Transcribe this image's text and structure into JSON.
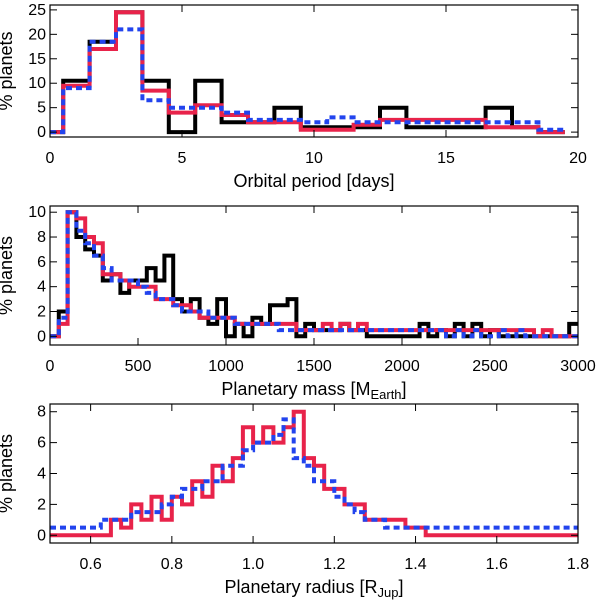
{
  "colors": {
    "black_series": "#000000",
    "red_series": "#e8234a",
    "blue_series": "#2244ee"
  },
  "chart_data": [
    {
      "type": "histogram-step",
      "xlabel": "Orbital period [days]",
      "ylabel": "% planets",
      "xlim": [
        0,
        20
      ],
      "ylim": [
        -1,
        26
      ],
      "xticks": [
        0,
        5,
        10,
        15,
        20
      ],
      "yticks": [
        0,
        5,
        10,
        15,
        20,
        25
      ],
      "series": [
        {
          "color_key": "black_series",
          "dashed": false,
          "x": [
            0,
            0.5,
            1.5,
            2.5,
            3.5,
            4.5,
            5.5,
            6.5,
            7.5,
            8.5,
            9.5,
            10.5,
            11.5,
            12.5,
            13.5,
            14.5,
            15.5,
            16.5,
            17.5,
            18.5,
            19.5
          ],
          "y": [
            0,
            10.5,
            18.5,
            24.5,
            10.5,
            0,
            10.5,
            2,
            2,
            5,
            1,
            1,
            1,
            5,
            1,
            1,
            1,
            5,
            1,
            0
          ]
        },
        {
          "color_key": "red_series",
          "dashed": false,
          "x": [
            0,
            0.5,
            1.5,
            2.5,
            3.5,
            4.5,
            5.5,
            6.5,
            7.5,
            8.5,
            9.5,
            10.5,
            11.5,
            12.5,
            13.5,
            14.5,
            15.5,
            16.5,
            17.5,
            18.5,
            19.5
          ],
          "y": [
            0,
            9.5,
            17,
            24.5,
            8.5,
            4,
            5.5,
            3.5,
            2,
            2,
            0.5,
            0.5,
            1.5,
            2.5,
            2.5,
            2.5,
            2.5,
            1,
            1,
            0
          ]
        },
        {
          "color_key": "blue_series",
          "dashed": true,
          "x": [
            0,
            0.5,
            1.5,
            2.5,
            3.5,
            4.5,
            5.5,
            6.5,
            7.5,
            8.5,
            9.5,
            10.5,
            11.5,
            12.5,
            13.5,
            14.5,
            15.5,
            16.5,
            17.5,
            18.5,
            19.5
          ],
          "y": [
            0,
            9,
            18.5,
            21,
            6.5,
            5,
            5,
            4,
            2.5,
            2.5,
            2,
            3,
            2,
            2,
            2,
            2,
            2,
            2,
            2,
            0.5
          ]
        }
      ]
    },
    {
      "type": "histogram-step",
      "xlabel": "Planetary mass [M",
      "xlabel_sub": "Earth",
      "xlabel_end": "]",
      "ylabel": "% planets",
      "xlim": [
        0,
        3000
      ],
      "ylim": [
        -0.7,
        10.5
      ],
      "xticks": [
        0,
        500,
        1000,
        1500,
        2000,
        2500,
        3000
      ],
      "yticks": [
        0,
        2,
        4,
        6,
        8,
        10
      ],
      "series": [
        {
          "color_key": "black_series",
          "dashed": false,
          "x": [
            0,
            50,
            100,
            150,
            200,
            250,
            300,
            350,
            400,
            450,
            500,
            550,
            600,
            650,
            700,
            750,
            800,
            850,
            900,
            950,
            1000,
            1050,
            1100,
            1150,
            1200,
            1250,
            1300,
            1350,
            1400,
            1450,
            1500,
            1550,
            1600,
            1650,
            1700,
            1750,
            1800,
            1850,
            1900,
            1950,
            2000,
            2050,
            2100,
            2150,
            2200,
            2250,
            2300,
            2350,
            2400,
            2450,
            2500,
            2550,
            2600,
            2650,
            2700,
            2750,
            2800,
            2850,
            2900,
            2950,
            3000
          ],
          "y": [
            0,
            2,
            10,
            8,
            7,
            6.5,
            4.5,
            5,
            3.5,
            4.5,
            4.5,
            5.5,
            4.5,
            6.5,
            3,
            2,
            3,
            1.5,
            1,
            3,
            0,
            1,
            0,
            1.5,
            1,
            2.5,
            2.5,
            3,
            0,
            1,
            0.5,
            0.5,
            0.5,
            1,
            0.5,
            0.5,
            0,
            0,
            0,
            0,
            0,
            0,
            1,
            0,
            0.5,
            0,
            1,
            0,
            1,
            0,
            0.5,
            0,
            0,
            0,
            0,
            0,
            0,
            0,
            0,
            1
          ]
        },
        {
          "color_key": "red_series",
          "dashed": false,
          "x": [
            0,
            50,
            100,
            150,
            200,
            250,
            300,
            350,
            400,
            450,
            500,
            550,
            600,
            650,
            700,
            750,
            800,
            850,
            900,
            950,
            1000,
            1050,
            1100,
            1150,
            1200,
            1250,
            1300,
            1350,
            1400,
            1450,
            1500,
            1550,
            1600,
            1650,
            1700,
            1750,
            1800,
            1850,
            1900,
            1950,
            2000,
            2050,
            2100,
            2150,
            2200,
            2250,
            2300,
            2350,
            2400,
            2450,
            2500,
            2550,
            2600,
            2650,
            2700,
            2750,
            2800,
            2850,
            2900,
            2950,
            3000
          ],
          "y": [
            0,
            1,
            10,
            9.5,
            8,
            7.5,
            5,
            5,
            4.5,
            4,
            4,
            4,
            3,
            3,
            2.5,
            2.5,
            2,
            1.5,
            1.5,
            1.5,
            1.5,
            1,
            1,
            1,
            1,
            1,
            1,
            1,
            0.5,
            0.5,
            0.5,
            1,
            0.5,
            1,
            0.5,
            1,
            0.5,
            0.5,
            0.5,
            0.5,
            0.5,
            0.5,
            0.5,
            0.5,
            0.5,
            0.5,
            0.5,
            0.5,
            0.5,
            0.5,
            0.5,
            0.5,
            0.5,
            0.5,
            0.5,
            0,
            0.5,
            0,
            0,
            0
          ]
        },
        {
          "color_key": "blue_series",
          "dashed": true,
          "x": [
            0,
            50,
            100,
            150,
            200,
            250,
            300,
            350,
            400,
            450,
            500,
            550,
            600,
            650,
            700,
            750,
            800,
            850,
            900,
            950,
            1000,
            1050,
            1100,
            1150,
            1200,
            1250,
            1300,
            1350,
            1400,
            1450,
            1500,
            1550,
            1600,
            1650,
            1700,
            1750,
            1800,
            1850,
            1900,
            1950,
            2000,
            2050,
            2100,
            2150,
            2200,
            2250,
            2300,
            2350,
            2400,
            2450,
            2500,
            2550,
            2600,
            2650,
            2700,
            2750,
            2800,
            2850,
            2900,
            2950,
            3000
          ],
          "y": [
            0,
            1.5,
            10,
            8.5,
            7.5,
            6.5,
            5.5,
            4.5,
            4.5,
            4.5,
            4,
            3.5,
            3,
            3,
            2.5,
            2,
            2,
            2,
            1.5,
            1.5,
            1.5,
            1,
            1,
            1,
            1,
            1,
            0.5,
            0.5,
            0.5,
            0.5,
            0.5,
            0.5,
            0.5,
            0.5,
            0.5,
            0.5,
            0.5,
            0.5,
            0.5,
            0.5,
            0.5,
            0.5,
            0.5,
            0.5,
            0.5,
            0,
            0.5,
            0,
            0.5,
            0,
            0,
            0.5,
            0,
            0.5,
            0,
            0,
            0,
            0,
            0,
            0
          ]
        }
      ]
    },
    {
      "type": "histogram-step",
      "xlabel": "Planetary radius [R",
      "xlabel_sub": "Jup",
      "xlabel_end": "]",
      "ylabel": "% planets",
      "xlim": [
        0.5,
        1.8
      ],
      "ylim": [
        -0.5,
        8.5
      ],
      "xticks": [
        0.6,
        0.8,
        1.0,
        1.2,
        1.4,
        1.6,
        1.8
      ],
      "yticks": [
        0,
        2,
        4,
        6,
        8
      ],
      "series": [
        {
          "color_key": "red_series",
          "dashed": false,
          "x": [
            0.5,
            0.525,
            0.55,
            0.575,
            0.6,
            0.625,
            0.65,
            0.675,
            0.7,
            0.725,
            0.75,
            0.775,
            0.8,
            0.825,
            0.85,
            0.875,
            0.9,
            0.925,
            0.95,
            0.975,
            1.0,
            1.025,
            1.05,
            1.075,
            1.1,
            1.125,
            1.15,
            1.175,
            1.2,
            1.225,
            1.25,
            1.275,
            1.3,
            1.325,
            1.35,
            1.375,
            1.4,
            1.425,
            1.45,
            1.475,
            1.5,
            1.525,
            1.55,
            1.575,
            1.6,
            1.625,
            1.65,
            1.675,
            1.7,
            1.725,
            1.75,
            1.775,
            1.8
          ],
          "y": [
            0,
            0,
            0,
            0,
            0,
            0,
            1.0,
            0.5,
            2.0,
            1.0,
            2.5,
            1.0,
            2.5,
            2.0,
            3.5,
            2.5,
            4.5,
            3.5,
            5.0,
            7.0,
            6.0,
            7.0,
            6.0,
            7.0,
            8.0,
            5.0,
            4.5,
            3.0,
            3.0,
            2.0,
            2.0,
            1.0,
            1.0,
            1.0,
            1.0,
            0.5,
            0.5,
            0,
            0,
            0,
            0,
            0,
            0,
            0,
            0,
            0,
            0,
            0,
            0,
            0,
            0,
            0
          ]
        },
        {
          "color_key": "blue_series",
          "dashed": true,
          "x": [
            0.5,
            0.525,
            0.55,
            0.575,
            0.6,
            0.625,
            0.65,
            0.675,
            0.7,
            0.725,
            0.75,
            0.775,
            0.8,
            0.825,
            0.85,
            0.875,
            0.9,
            0.925,
            0.95,
            0.975,
            1.0,
            1.025,
            1.05,
            1.075,
            1.1,
            1.125,
            1.15,
            1.175,
            1.2,
            1.225,
            1.25,
            1.275,
            1.3,
            1.325,
            1.35,
            1.375,
            1.4,
            1.425,
            1.45,
            1.475,
            1.5,
            1.525,
            1.55,
            1.575,
            1.6,
            1.625,
            1.65,
            1.675,
            1.7,
            1.725,
            1.75,
            1.775,
            1.8
          ],
          "y": [
            0.5,
            0.5,
            0.5,
            0.5,
            0.5,
            1.0,
            1.0,
            1.0,
            1.5,
            1.5,
            1.5,
            2.0,
            2.5,
            3.0,
            3.0,
            3.5,
            3.5,
            4.5,
            4.5,
            5.5,
            6.0,
            6.0,
            6.5,
            7.5,
            5.0,
            4.5,
            3.5,
            3.5,
            2.5,
            2.0,
            1.5,
            1.0,
            1.0,
            0.5,
            0.5,
            0.5,
            0.5,
            0.5,
            0.5,
            0.5,
            0.5,
            0.5,
            0.5,
            0.5,
            0.5,
            0.5,
            0.5,
            0.5,
            0.5,
            0.5,
            0.5,
            0.5
          ]
        }
      ]
    }
  ]
}
